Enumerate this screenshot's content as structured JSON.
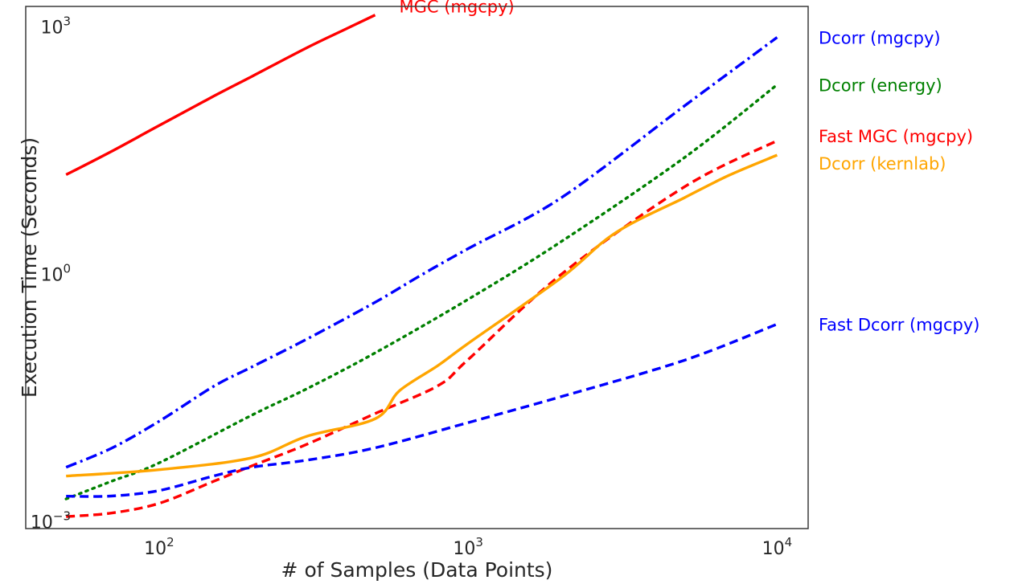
{
  "chart_data": {
    "type": "line",
    "xlabel": "# of Samples (Data Points)",
    "ylabel": "Execution Time (Seconds)",
    "x_scale": "log",
    "y_scale": "log",
    "xlim": [
      37,
      12600
    ],
    "ylim": [
      0.00083,
      1780
    ],
    "grid": false,
    "legend": "inline labels at line ends",
    "x_ticks": [
      {
        "value": 100,
        "base": "10",
        "exp": "2"
      },
      {
        "value": 1000,
        "base": "10",
        "exp": "3"
      },
      {
        "value": 10000,
        "base": "10",
        "exp": "4"
      }
    ],
    "y_ticks": [
      {
        "value": 0.001,
        "base": "10",
        "exp": "−3"
      },
      {
        "value": 1,
        "base": "10",
        "exp": "0"
      },
      {
        "value": 1000,
        "base": "10",
        "exp": "3"
      }
    ],
    "series": [
      {
        "name": "MGC (mgcpy)",
        "color": "#ff0000",
        "style": "solid",
        "label_anchor": "end-above",
        "x": [
          50,
          70,
          100,
          150,
          200,
          300,
          400,
          500
        ],
        "y": [
          16.2,
          31,
          64,
          145,
          253,
          560,
          940,
          1400
        ]
      },
      {
        "name": "Dcorr (mgcpy)",
        "color": "#0000ff",
        "style": "dashdot",
        "label_anchor": "right",
        "x": [
          50,
          70,
          100,
          150,
          200,
          300,
          500,
          700,
          1000,
          2000,
          5000,
          10000
        ],
        "y": [
          0.0046,
          0.0078,
          0.0166,
          0.044,
          0.076,
          0.164,
          0.46,
          0.97,
          2.06,
          8.5,
          110,
          750
        ]
      },
      {
        "name": "Dcorr (energy)",
        "color": "#008000",
        "style": "dotted",
        "label_anchor": "right",
        "x": [
          50,
          70,
          100,
          200,
          300,
          500,
          1000,
          2000,
          5000,
          10000
        ],
        "y": [
          0.0019,
          0.0031,
          0.0052,
          0.0198,
          0.041,
          0.112,
          0.5,
          2.5,
          26,
          200
        ]
      },
      {
        "name": "Fast MGC (mgcpy)",
        "color": "#ff0000",
        "style": "dashed",
        "label_anchor": "right",
        "x": [
          50,
          70,
          100,
          150,
          200,
          300,
          500,
          800,
          1000,
          2000,
          5000,
          10000
        ],
        "y": [
          0.00116,
          0.00128,
          0.00168,
          0.0031,
          0.0048,
          0.0087,
          0.0206,
          0.045,
          0.093,
          1.0,
          11.5,
          42
        ]
      },
      {
        "name": "Dcorr (kernlab)",
        "color": "#ffa500",
        "style": "solid",
        "label_anchor": "right",
        "x": [
          50,
          100,
          200,
          300,
          500,
          600,
          800,
          1000,
          2000,
          3000,
          5000,
          7000,
          10000
        ],
        "y": [
          0.0036,
          0.0043,
          0.006,
          0.0109,
          0.0178,
          0.039,
          0.079,
          0.146,
          0.91,
          3.2,
          8.5,
          16,
          28
        ]
      },
      {
        "name": "Fast Dcorr (mgcpy)",
        "color": "#0000ff",
        "style": "dashed",
        "label_anchor": "right",
        "x": [
          50,
          70,
          100,
          150,
          200,
          300,
          500,
          1000,
          2000,
          5000,
          10000
        ],
        "y": [
          0.00205,
          0.00206,
          0.0024,
          0.0036,
          0.0046,
          0.0056,
          0.0079,
          0.016,
          0.033,
          0.091,
          0.25
        ]
      }
    ]
  }
}
